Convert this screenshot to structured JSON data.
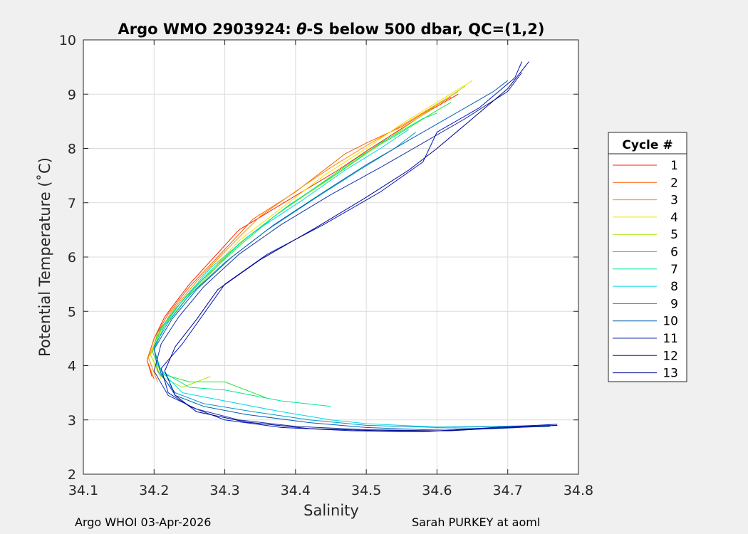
{
  "chart_data": {
    "type": "line",
    "title": "Argo WMO 2903924: θ-S below 500 dbar,  QC=(1,2)",
    "title_parts": {
      "prefix": "Argo WMO 2903924: ",
      "symbol": "θ",
      "suffix": "-S below 500 dbar,  QC=(1,2)"
    },
    "xlabel": "Salinity",
    "ylabel": "Potential Temperature (˚C)",
    "xlim": [
      34.1,
      34.8
    ],
    "ylim": [
      2,
      10
    ],
    "xticks": [
      "34.1",
      "34.2",
      "34.3",
      "34.4",
      "34.5",
      "34.6",
      "34.7",
      "34.8"
    ],
    "yticks": [
      "2",
      "3",
      "4",
      "5",
      "6",
      "7",
      "8",
      "9",
      "10"
    ],
    "grid": true,
    "legend": {
      "title": "Cycle #",
      "placement": "right"
    },
    "series": [
      {
        "name": "1",
        "color": "#ff2000",
        "points": [
          [
            34.197,
            3.8
          ],
          [
            34.19,
            4.1
          ],
          [
            34.2,
            4.5
          ],
          [
            34.215,
            4.9
          ],
          [
            34.25,
            5.5
          ],
          [
            34.285,
            6.0
          ],
          [
            34.32,
            6.5
          ],
          [
            34.39,
            7.05
          ],
          [
            34.46,
            7.6
          ],
          [
            34.5,
            7.95
          ],
          [
            34.53,
            8.2
          ],
          [
            34.59,
            8.7
          ],
          [
            34.63,
            9.0
          ]
        ]
      },
      {
        "name": "2",
        "color": "#ff5a00",
        "points": [
          [
            34.2,
            3.75
          ],
          [
            34.19,
            4.1
          ],
          [
            34.2,
            4.5
          ],
          [
            34.22,
            4.95
          ],
          [
            34.25,
            5.45
          ],
          [
            34.29,
            6.0
          ],
          [
            34.34,
            6.7
          ],
          [
            34.4,
            7.2
          ],
          [
            34.47,
            7.9
          ],
          [
            34.5,
            8.1
          ],
          [
            34.55,
            8.4
          ],
          [
            34.6,
            8.8
          ],
          [
            34.62,
            8.95
          ]
        ]
      },
      {
        "name": "3",
        "color": "#ff8c00",
        "points": [
          [
            34.205,
            3.7
          ],
          [
            34.192,
            4.15
          ],
          [
            34.205,
            4.55
          ],
          [
            34.225,
            5.0
          ],
          [
            34.26,
            5.55
          ],
          [
            34.3,
            6.1
          ],
          [
            34.35,
            6.75
          ],
          [
            34.41,
            7.3
          ],
          [
            34.45,
            7.65
          ],
          [
            34.5,
            8.05
          ],
          [
            34.56,
            8.5
          ],
          [
            34.63,
            9.05
          ]
        ]
      },
      {
        "name": "4",
        "color": "#f5e000",
        "points": [
          [
            34.21,
            3.75
          ],
          [
            34.195,
            4.2
          ],
          [
            34.205,
            4.6
          ],
          [
            34.23,
            5.05
          ],
          [
            34.27,
            5.6
          ],
          [
            34.32,
            6.3
          ],
          [
            34.38,
            6.9
          ],
          [
            34.44,
            7.5
          ],
          [
            34.5,
            8.0
          ],
          [
            34.55,
            8.45
          ],
          [
            34.6,
            8.85
          ],
          [
            34.65,
            9.25
          ]
        ]
      },
      {
        "name": "5",
        "color": "#a8e800",
        "points": [
          [
            34.28,
            3.8
          ],
          [
            34.24,
            3.6
          ],
          [
            34.21,
            3.8
          ],
          [
            34.195,
            4.2
          ],
          [
            34.21,
            4.65
          ],
          [
            34.24,
            5.15
          ],
          [
            34.28,
            5.7
          ],
          [
            34.32,
            6.25
          ],
          [
            34.38,
            6.85
          ],
          [
            34.45,
            7.45
          ],
          [
            34.5,
            7.9
          ],
          [
            34.55,
            8.35
          ],
          [
            34.6,
            8.8
          ],
          [
            34.64,
            9.15
          ]
        ]
      },
      {
        "name": "6",
        "color": "#30e030",
        "points": [
          [
            34.36,
            3.4
          ],
          [
            34.3,
            3.7
          ],
          [
            34.25,
            3.7
          ],
          [
            34.21,
            3.85
          ],
          [
            34.198,
            4.25
          ],
          [
            34.205,
            4.6
          ],
          [
            34.23,
            5.05
          ],
          [
            34.27,
            5.6
          ],
          [
            34.32,
            6.2
          ],
          [
            34.37,
            6.75
          ],
          [
            34.43,
            7.3
          ],
          [
            34.49,
            7.85
          ],
          [
            34.55,
            8.3
          ],
          [
            34.6,
            8.7
          ],
          [
            34.62,
            8.85
          ]
        ]
      },
      {
        "name": "7",
        "color": "#00e890",
        "points": [
          [
            34.45,
            3.25
          ],
          [
            34.38,
            3.35
          ],
          [
            34.3,
            3.55
          ],
          [
            34.25,
            3.6
          ],
          [
            34.21,
            3.9
          ],
          [
            34.2,
            4.3
          ],
          [
            34.21,
            4.7
          ],
          [
            34.24,
            5.2
          ],
          [
            34.28,
            5.75
          ],
          [
            34.33,
            6.35
          ],
          [
            34.39,
            6.95
          ],
          [
            34.46,
            7.55
          ],
          [
            34.52,
            8.1
          ],
          [
            34.58,
            8.55
          ],
          [
            34.6,
            8.65
          ]
        ]
      },
      {
        "name": "8",
        "color": "#00d8e8",
        "points": [
          [
            34.75,
            2.9
          ],
          [
            34.68,
            2.88
          ],
          [
            34.6,
            2.87
          ],
          [
            34.5,
            2.93
          ],
          [
            34.45,
            3.0
          ],
          [
            34.38,
            3.15
          ],
          [
            34.3,
            3.35
          ],
          [
            34.24,
            3.5
          ],
          [
            34.21,
            3.9
          ],
          [
            34.2,
            4.3
          ],
          [
            34.215,
            4.75
          ],
          [
            34.24,
            5.2
          ],
          [
            34.28,
            5.8
          ],
          [
            34.34,
            6.45
          ],
          [
            34.41,
            7.05
          ],
          [
            34.47,
            7.6
          ],
          [
            34.52,
            8.0
          ],
          [
            34.56,
            8.35
          ]
        ]
      },
      {
        "name": "9",
        "color": "#0098c8",
        "points": [
          [
            34.76,
            2.9
          ],
          [
            34.7,
            2.88
          ],
          [
            34.6,
            2.86
          ],
          [
            34.5,
            2.9
          ],
          [
            34.42,
            3.0
          ],
          [
            34.34,
            3.15
          ],
          [
            34.27,
            3.3
          ],
          [
            34.23,
            3.5
          ],
          [
            34.205,
            3.9
          ],
          [
            34.2,
            4.35
          ],
          [
            34.22,
            4.8
          ],
          [
            34.25,
            5.3
          ],
          [
            34.3,
            5.9
          ],
          [
            34.36,
            6.5
          ],
          [
            34.43,
            7.1
          ],
          [
            34.49,
            7.6
          ],
          [
            34.54,
            8.0
          ],
          [
            34.57,
            8.3
          ]
        ]
      },
      {
        "name": "10",
        "color": "#0060b0",
        "points": [
          [
            34.76,
            2.88
          ],
          [
            34.68,
            2.85
          ],
          [
            34.58,
            2.82
          ],
          [
            34.5,
            2.86
          ],
          [
            34.42,
            2.95
          ],
          [
            34.33,
            3.1
          ],
          [
            34.27,
            3.25
          ],
          [
            34.23,
            3.45
          ],
          [
            34.21,
            3.85
          ],
          [
            34.2,
            4.3
          ],
          [
            34.225,
            4.85
          ],
          [
            34.26,
            5.4
          ],
          [
            34.31,
            6.0
          ],
          [
            34.37,
            6.6
          ],
          [
            34.44,
            7.2
          ],
          [
            34.5,
            7.7
          ],
          [
            34.56,
            8.15
          ],
          [
            34.62,
            8.6
          ],
          [
            34.68,
            9.05
          ],
          [
            34.7,
            9.25
          ]
        ]
      },
      {
        "name": "11",
        "color": "#1830a0",
        "points": [
          [
            34.77,
            2.9
          ],
          [
            34.7,
            2.85
          ],
          [
            34.6,
            2.8
          ],
          [
            34.5,
            2.82
          ],
          [
            34.4,
            2.88
          ],
          [
            34.32,
            3.0
          ],
          [
            34.26,
            3.2
          ],
          [
            34.22,
            3.45
          ],
          [
            34.2,
            3.9
          ],
          [
            34.21,
            4.4
          ],
          [
            34.235,
            4.9
          ],
          [
            34.27,
            5.45
          ],
          [
            34.32,
            6.05
          ],
          [
            34.38,
            6.6
          ],
          [
            34.45,
            7.15
          ],
          [
            34.52,
            7.65
          ],
          [
            34.58,
            8.1
          ],
          [
            34.64,
            8.55
          ],
          [
            34.7,
            9.05
          ],
          [
            34.72,
            9.4
          ]
        ]
      },
      {
        "name": "12",
        "color": "#0018c0",
        "points": [
          [
            34.77,
            2.92
          ],
          [
            34.68,
            2.86
          ],
          [
            34.58,
            2.78
          ],
          [
            34.48,
            2.8
          ],
          [
            34.38,
            2.86
          ],
          [
            34.3,
            3.0
          ],
          [
            34.25,
            3.25
          ],
          [
            34.22,
            3.5
          ],
          [
            34.21,
            3.95
          ],
          [
            34.24,
            4.4
          ],
          [
            34.27,
            4.95
          ],
          [
            34.3,
            5.5
          ],
          [
            34.36,
            6.05
          ],
          [
            34.44,
            6.6
          ],
          [
            34.52,
            7.2
          ],
          [
            34.58,
            7.75
          ],
          [
            34.6,
            8.3
          ],
          [
            34.66,
            8.75
          ],
          [
            34.71,
            9.3
          ],
          [
            34.72,
            9.6
          ]
        ]
      },
      {
        "name": "13",
        "color": "#000090",
        "points": [
          [
            34.77,
            2.9
          ],
          [
            34.7,
            2.86
          ],
          [
            34.62,
            2.8
          ],
          [
            34.52,
            2.8
          ],
          [
            34.42,
            2.84
          ],
          [
            34.33,
            2.96
          ],
          [
            34.26,
            3.15
          ],
          [
            34.23,
            3.45
          ],
          [
            34.215,
            3.9
          ],
          [
            34.23,
            4.35
          ],
          [
            34.26,
            4.85
          ],
          [
            34.29,
            5.4
          ],
          [
            34.35,
            5.95
          ],
          [
            34.43,
            6.55
          ],
          [
            34.5,
            7.1
          ],
          [
            34.56,
            7.6
          ],
          [
            34.6,
            8.0
          ],
          [
            34.65,
            8.55
          ],
          [
            34.7,
            9.1
          ],
          [
            34.73,
            9.6
          ]
        ]
      }
    ]
  },
  "footer": {
    "left": "Argo WHOI 03-Apr-2026",
    "right": "Sarah PURKEY at aoml"
  }
}
